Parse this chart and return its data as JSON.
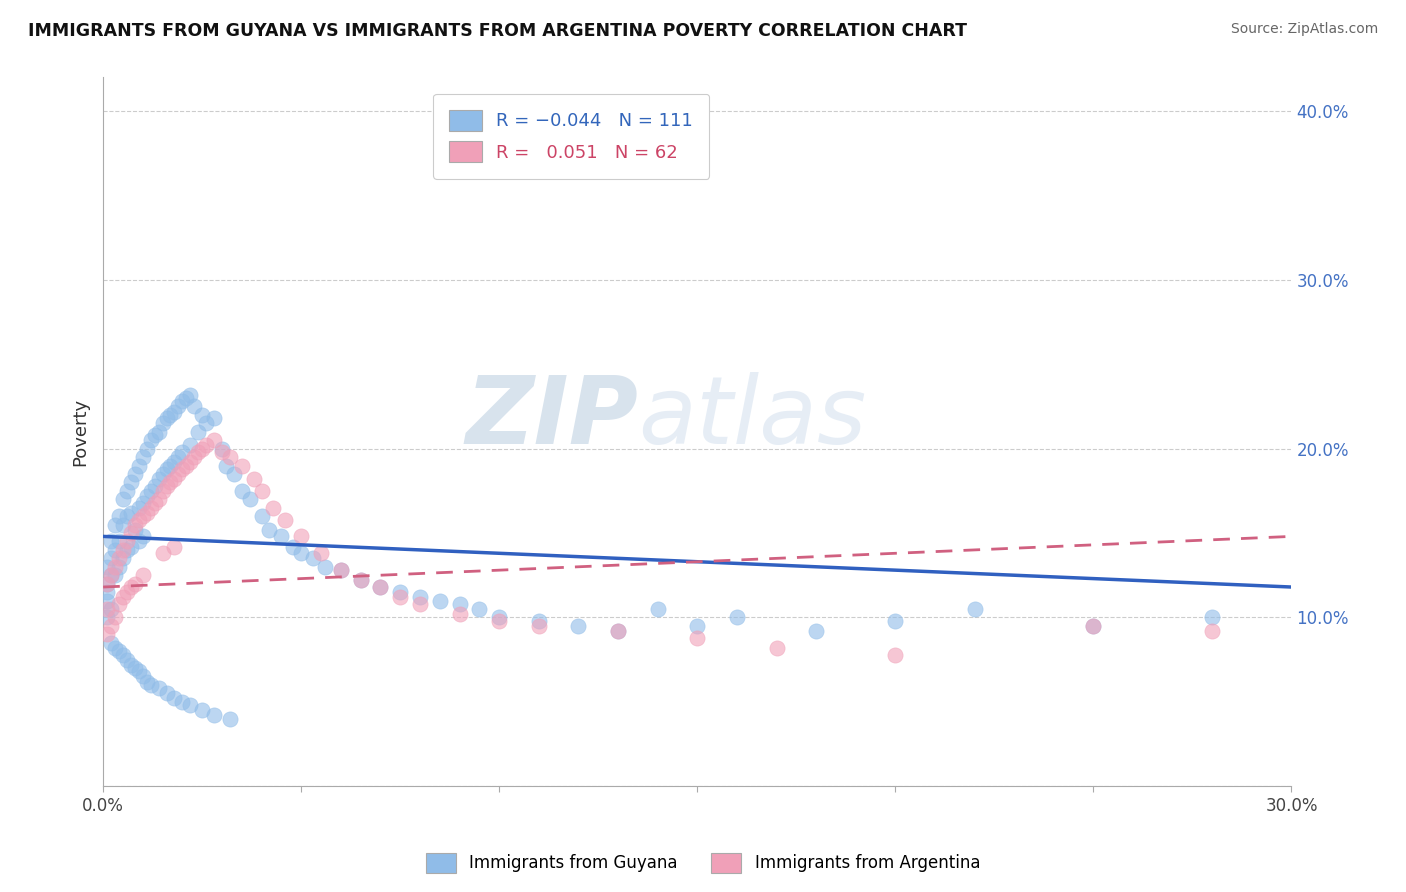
{
  "title": "IMMIGRANTS FROM GUYANA VS IMMIGRANTS FROM ARGENTINA POVERTY CORRELATION CHART",
  "source": "Source: ZipAtlas.com",
  "ylabel": "Poverty",
  "legend_label_1": "Immigrants from Guyana",
  "legend_label_2": "Immigrants from Argentina",
  "r1": "-0.044",
  "n1": "111",
  "r2": "0.051",
  "n2": "62",
  "color_blue": "#90bce8",
  "color_pink": "#f0a0b8",
  "color_blue_line": "#3060c0",
  "color_pink_line": "#d06080",
  "color_watermark": "#c8d8ea",
  "xlim": [
    0.0,
    0.3
  ],
  "ylim": [
    0.0,
    0.42
  ],
  "blue_line_y0": 0.148,
  "blue_line_y1": 0.118,
  "pink_line_y0": 0.118,
  "pink_line_y1": 0.148,
  "guyana_x": [
    0.001,
    0.001,
    0.001,
    0.001,
    0.001,
    0.002,
    0.002,
    0.002,
    0.002,
    0.003,
    0.003,
    0.003,
    0.004,
    0.004,
    0.004,
    0.005,
    0.005,
    0.005,
    0.006,
    0.006,
    0.006,
    0.007,
    0.007,
    0.007,
    0.008,
    0.008,
    0.009,
    0.009,
    0.009,
    0.01,
    0.01,
    0.01,
    0.011,
    0.011,
    0.012,
    0.012,
    0.013,
    0.013,
    0.014,
    0.014,
    0.015,
    0.015,
    0.016,
    0.016,
    0.017,
    0.017,
    0.018,
    0.018,
    0.019,
    0.019,
    0.02,
    0.02,
    0.021,
    0.022,
    0.022,
    0.023,
    0.024,
    0.025,
    0.026,
    0.028,
    0.03,
    0.031,
    0.033,
    0.035,
    0.037,
    0.04,
    0.042,
    0.045,
    0.048,
    0.05,
    0.053,
    0.056,
    0.06,
    0.065,
    0.07,
    0.075,
    0.08,
    0.085,
    0.09,
    0.095,
    0.1,
    0.11,
    0.12,
    0.13,
    0.14,
    0.15,
    0.16,
    0.18,
    0.2,
    0.22,
    0.25,
    0.28,
    0.002,
    0.003,
    0.004,
    0.005,
    0.006,
    0.007,
    0.008,
    0.009,
    0.01,
    0.011,
    0.012,
    0.014,
    0.016,
    0.018,
    0.02,
    0.022,
    0.025,
    0.028,
    0.032
  ],
  "guyana_y": [
    0.13,
    0.12,
    0.115,
    0.11,
    0.1,
    0.145,
    0.135,
    0.125,
    0.105,
    0.155,
    0.14,
    0.125,
    0.16,
    0.145,
    0.13,
    0.17,
    0.155,
    0.135,
    0.175,
    0.16,
    0.14,
    0.18,
    0.162,
    0.142,
    0.185,
    0.152,
    0.19,
    0.165,
    0.145,
    0.195,
    0.168,
    0.148,
    0.2,
    0.172,
    0.205,
    0.175,
    0.208,
    0.178,
    0.21,
    0.182,
    0.215,
    0.185,
    0.218,
    0.188,
    0.22,
    0.19,
    0.222,
    0.192,
    0.225,
    0.195,
    0.228,
    0.198,
    0.23,
    0.232,
    0.202,
    0.225,
    0.21,
    0.22,
    0.215,
    0.218,
    0.2,
    0.19,
    0.185,
    0.175,
    0.17,
    0.16,
    0.152,
    0.148,
    0.142,
    0.138,
    0.135,
    0.13,
    0.128,
    0.122,
    0.118,
    0.115,
    0.112,
    0.11,
    0.108,
    0.105,
    0.1,
    0.098,
    0.095,
    0.092,
    0.105,
    0.095,
    0.1,
    0.092,
    0.098,
    0.105,
    0.095,
    0.1,
    0.085,
    0.082,
    0.08,
    0.078,
    0.075,
    0.072,
    0.07,
    0.068,
    0.065,
    0.062,
    0.06,
    0.058,
    0.055,
    0.052,
    0.05,
    0.048,
    0.045,
    0.042,
    0.04
  ],
  "argentina_x": [
    0.001,
    0.001,
    0.001,
    0.002,
    0.002,
    0.003,
    0.003,
    0.004,
    0.004,
    0.005,
    0.005,
    0.006,
    0.006,
    0.007,
    0.007,
    0.008,
    0.008,
    0.009,
    0.01,
    0.01,
    0.011,
    0.012,
    0.013,
    0.014,
    0.015,
    0.015,
    0.016,
    0.017,
    0.018,
    0.018,
    0.019,
    0.02,
    0.021,
    0.022,
    0.023,
    0.024,
    0.025,
    0.026,
    0.028,
    0.03,
    0.032,
    0.035,
    0.038,
    0.04,
    0.043,
    0.046,
    0.05,
    0.055,
    0.06,
    0.065,
    0.07,
    0.075,
    0.08,
    0.09,
    0.1,
    0.11,
    0.13,
    0.15,
    0.17,
    0.2,
    0.25,
    0.28
  ],
  "argentina_y": [
    0.12,
    0.105,
    0.09,
    0.125,
    0.095,
    0.13,
    0.1,
    0.135,
    0.108,
    0.14,
    0.112,
    0.145,
    0.115,
    0.15,
    0.118,
    0.155,
    0.12,
    0.158,
    0.16,
    0.125,
    0.162,
    0.165,
    0.168,
    0.17,
    0.175,
    0.138,
    0.178,
    0.18,
    0.182,
    0.142,
    0.185,
    0.188,
    0.19,
    0.192,
    0.195,
    0.198,
    0.2,
    0.202,
    0.205,
    0.198,
    0.195,
    0.19,
    0.182,
    0.175,
    0.165,
    0.158,
    0.148,
    0.138,
    0.128,
    0.122,
    0.118,
    0.112,
    0.108,
    0.102,
    0.098,
    0.095,
    0.092,
    0.088,
    0.082,
    0.078,
    0.095,
    0.092
  ]
}
